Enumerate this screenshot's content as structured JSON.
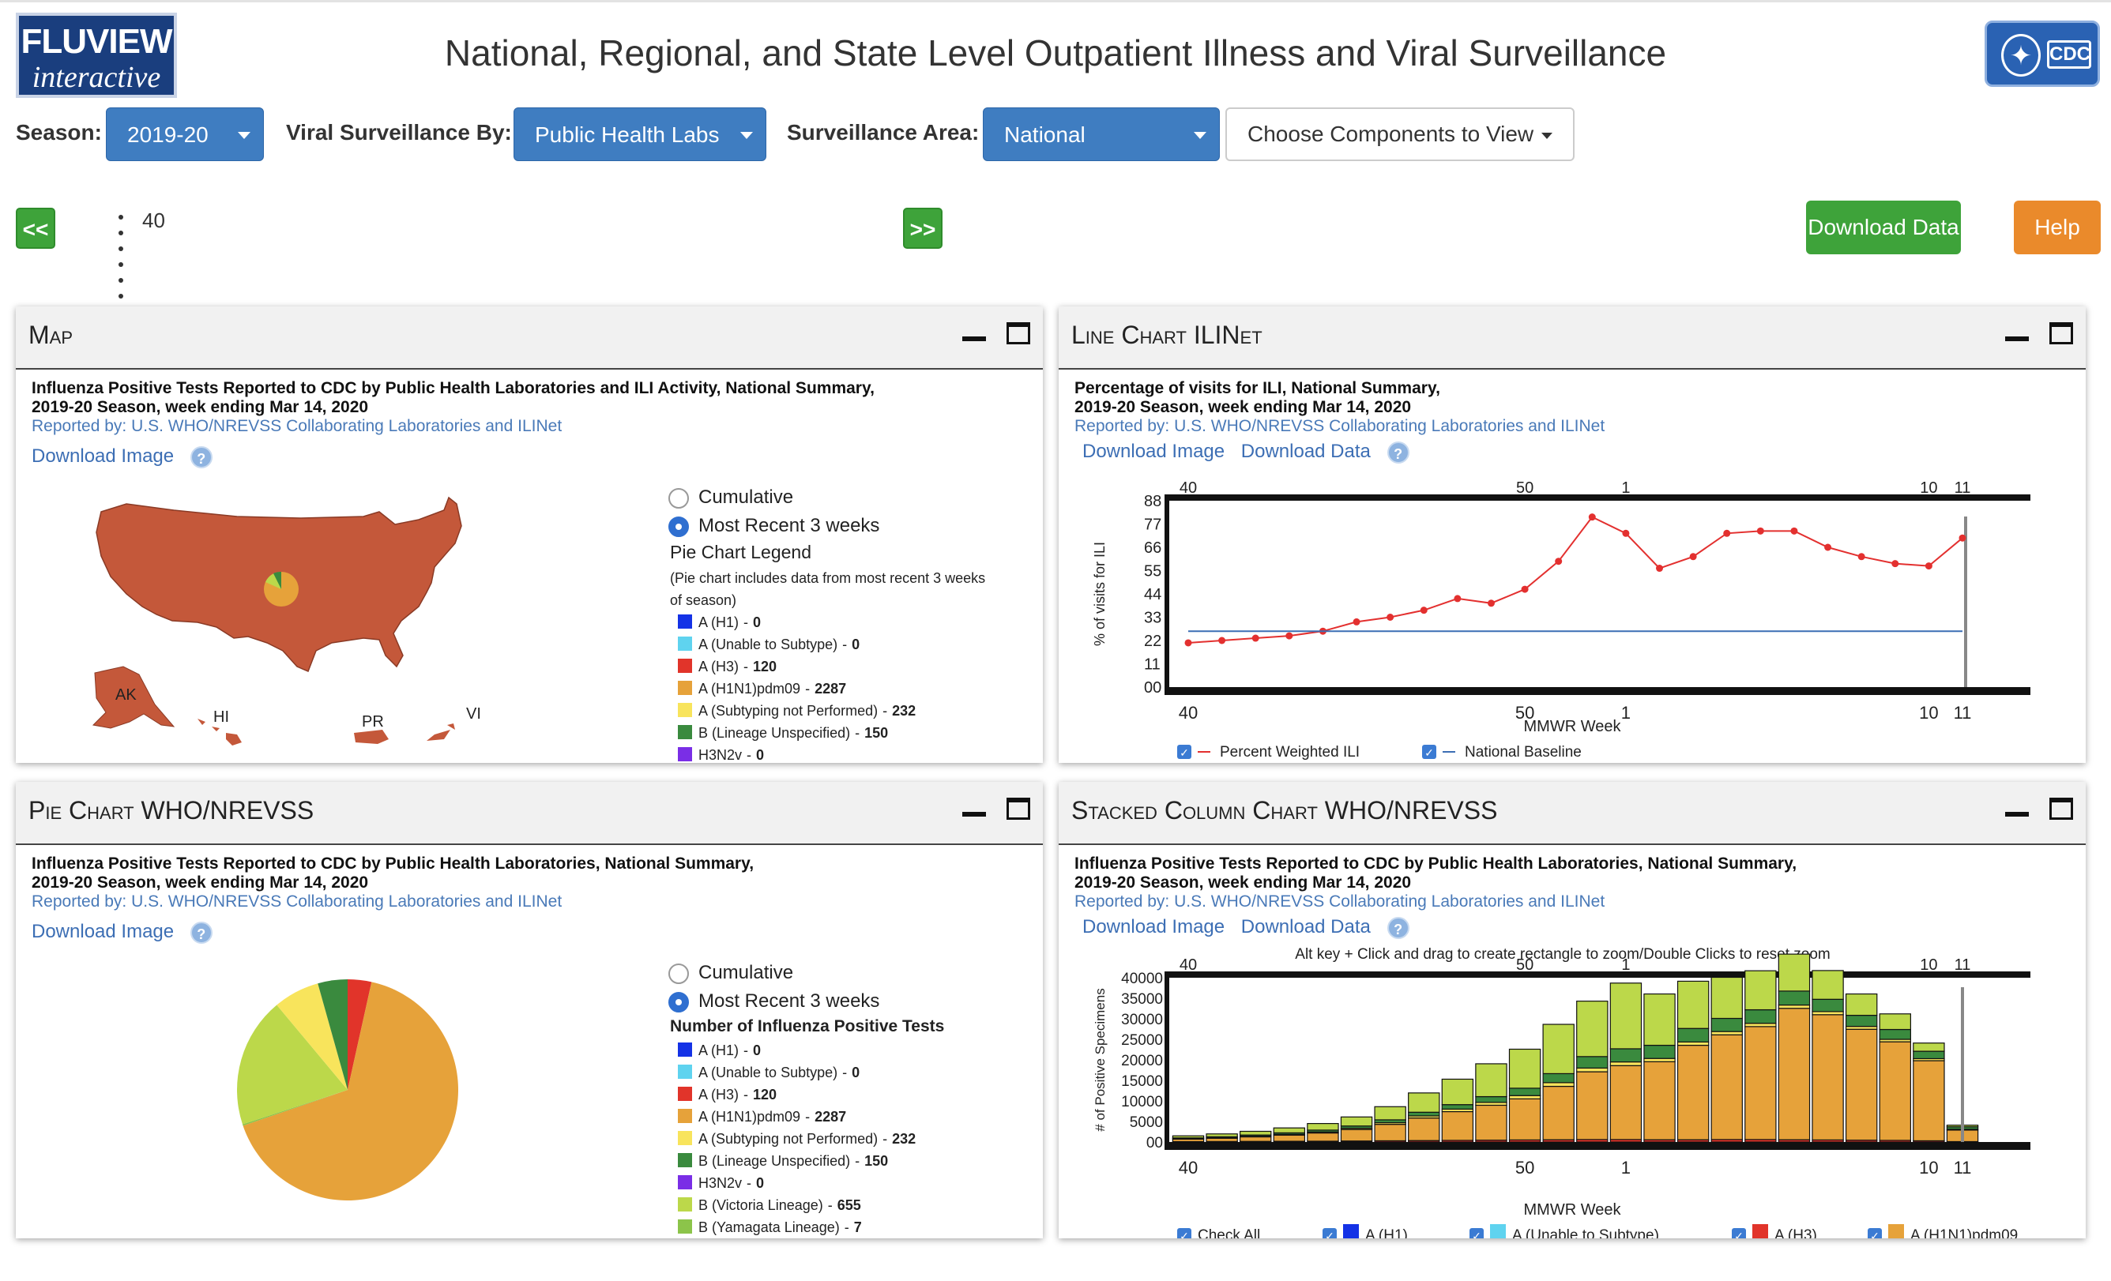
{
  "header": {
    "logo_top": "FLUVIEW",
    "logo_bottom": "interactive",
    "title": "National, Regional, and State Level Outpatient Illness and Viral Surveillance",
    "cdc_logo": "CDC"
  },
  "controls": {
    "season_label": "Season:",
    "season_value": "2019-20",
    "viral_label": "Viral Surveillance By:",
    "viral_value": "Public Health Labs",
    "area_label": "Surveillance Area:",
    "area_value": "National",
    "components_label": "Choose Components to View",
    "prev_label": "<<",
    "next_label": ">>",
    "week_value": "40",
    "download_data": "Download Data",
    "help": "Help"
  },
  "colors": {
    "green_button": "#3ea33a",
    "orange_button": "#ea8a2b",
    "select_blue": "#3f7dc1",
    "map_fill": "#c4583a",
    "link_blue": "#3c6eb4"
  },
  "legend_items": [
    {
      "label": "A (H1)",
      "value": "0",
      "color": "#1432e6"
    },
    {
      "label": "A (Unable to Subtype)",
      "value": "0",
      "color": "#5fd3ef"
    },
    {
      "label": "A (H3)",
      "value": "120",
      "color": "#e1342a"
    },
    {
      "label": "A (H1N1)pdm09",
      "value": "2287",
      "color": "#e6a23a"
    },
    {
      "label": "A (Subtyping not Performed)",
      "value": "232",
      "color": "#f8e45c"
    },
    {
      "label": "B (Lineage Unspecified)",
      "value": "150",
      "color": "#3a8a3e"
    },
    {
      "label": "H3N2v",
      "value": "0",
      "color": "#7a2ee6"
    },
    {
      "label": "B (Victoria Lineage)",
      "value": "655",
      "color": "#bcd84a"
    },
    {
      "label": "B (Yamagata Lineage)",
      "value": "7",
      "color": "#8cc44a"
    }
  ],
  "map_panel": {
    "title": "Map",
    "chart_title_1": "Influenza Positive Tests Reported to CDC by Public Health Laboratories and ILI Activity, National Summary,",
    "chart_title_2": "2019-20 Season, week ending Mar 14, 2020",
    "reported_by": "Reported by: U.S. WHO/NREVSS Collaborating Laboratories and ILINet",
    "download_image": "Download Image",
    "help_icon": "?",
    "radio_cumulative": "Cumulative",
    "radio_recent": "Most Recent 3 weeks",
    "legend_title": "Pie Chart Legend",
    "legend_note": "(Pie chart includes data from most recent 3 weeks of season)",
    "labels": {
      "ak": "AK",
      "hi": "HI",
      "pr": "PR",
      "vi": "VI"
    }
  },
  "line_panel": {
    "title": "Line Chart ILINet",
    "chart_title_1": "Percentage of visits for ILI, National Summary,",
    "chart_title_2": "2019-20 Season, week ending Mar 14, 2020",
    "reported_by": "Reported by: U.S. WHO/NREVSS Collaborating Laboratories and ILINet",
    "download_image": "Download Image",
    "download_data": "Download Data",
    "help_icon": "?",
    "legend_ili": "Percent Weighted ILI",
    "legend_baseline": "National Baseline"
  },
  "pie_panel": {
    "title": "Pie Chart WHO/NREVSS",
    "chart_title_1": "Influenza Positive Tests Reported to CDC by Public Health Laboratories, National Summary,",
    "chart_title_2": "2019-20 Season, week ending Mar 14, 2020",
    "reported_by": "Reported by: U.S. WHO/NREVSS Collaborating Laboratories and ILINet",
    "download_image": "Download Image",
    "help_icon": "?",
    "radio_cumulative": "Cumulative",
    "radio_recent": "Most Recent 3 weeks",
    "legend_title": "Number of Influenza Positive Tests"
  },
  "stack_panel": {
    "title": "Stacked Column Chart WHO/NREVSS",
    "chart_title_1": "Influenza Positive Tests Reported to CDC by Public Health Laboratories, National Summary,",
    "chart_title_2": "2019-20 Season, week ending Mar 14, 2020",
    "reported_by": "Reported by: U.S. WHO/NREVSS Collaborating Laboratories and ILINet",
    "download_image": "Download Image",
    "download_data": "Download Data",
    "help_icon": "?",
    "zoom_hint": "Alt key + Click and drag to create rectangle to zoom/Double Clicks to reset zoom",
    "legend": [
      "Check All",
      "A (H1)",
      "A (Unable to Subtype)",
      "A (H3)",
      "A (H1N1)pdm09"
    ]
  },
  "chart_data": [
    {
      "type": "line",
      "title": "Percentage of visits for ILI, National Summary, 2019-20 Season, week ending Mar 14, 2020",
      "xlabel": "MMWR Week",
      "ylabel": "% of visits for ILI",
      "x_ticks": [
        "40",
        "50",
        "1",
        "10",
        "11"
      ],
      "y_ticks": [
        "00",
        "11",
        "22",
        "33",
        "44",
        "55",
        "66",
        "77",
        "88"
      ],
      "ylim": [
        0,
        8
      ],
      "x": [
        40,
        41,
        42,
        43,
        44,
        45,
        46,
        47,
        48,
        49,
        50,
        51,
        52,
        1,
        2,
        3,
        4,
        5,
        6,
        7,
        8,
        9,
        10,
        11
      ],
      "series": [
        {
          "name": "Percent Weighted ILI",
          "color": "#e3302f",
          "values": [
            1.9,
            2.0,
            2.1,
            2.2,
            2.4,
            2.8,
            3.0,
            3.3,
            3.8,
            3.6,
            4.2,
            5.4,
            7.3,
            6.6,
            5.1,
            5.6,
            6.6,
            6.7,
            6.7,
            6.0,
            5.6,
            5.3,
            5.2,
            6.4
          ]
        },
        {
          "name": "National Baseline",
          "color": "#3c6eb4",
          "values": [
            2.4,
            2.4,
            2.4,
            2.4,
            2.4,
            2.4,
            2.4,
            2.4,
            2.4,
            2.4,
            2.4,
            2.4,
            2.4,
            2.4,
            2.4,
            2.4,
            2.4,
            2.4,
            2.4,
            2.4,
            2.4,
            2.4,
            2.4,
            2.4
          ]
        }
      ]
    },
    {
      "type": "pie",
      "title": "Number of Influenza Positive Tests",
      "categories": [
        "A (H1)",
        "A (Unable to Subtype)",
        "A (H3)",
        "A (H1N1)pdm09",
        "A (Subtyping not Performed)",
        "B (Lineage Unspecified)",
        "H3N2v",
        "B (Victoria Lineage)",
        "B (Yamagata Lineage)"
      ],
      "values": [
        0,
        0,
        120,
        2287,
        232,
        150,
        0,
        655,
        7
      ]
    },
    {
      "type": "bar",
      "title": "Influenza Positive Tests Reported to CDC by Public Health Laboratories, National Summary, 2019-20 Season, week ending Mar 14, 2020",
      "xlabel": "MMWR Week",
      "ylabel": "# of Positive Specimens",
      "x_ticks": [
        "40",
        "50",
        "1",
        "10",
        "11"
      ],
      "ylim": [
        0,
        4000
      ],
      "categories": [
        "40",
        "41",
        "42",
        "43",
        "44",
        "45",
        "46",
        "47",
        "48",
        "49",
        "50",
        "51",
        "52",
        "1",
        "2",
        "3",
        "4",
        "5",
        "6",
        "7",
        "8",
        "9",
        "10",
        "11"
      ],
      "series": [
        {
          "name": "A (H3)",
          "color": "#e1342a",
          "values": [
            10,
            12,
            15,
            18,
            20,
            25,
            30,
            35,
            40,
            45,
            50,
            55,
            60,
            60,
            55,
            55,
            60,
            60,
            55,
            50,
            45,
            40,
            30,
            10
          ]
        },
        {
          "name": "A (H1N1)pdm09",
          "color": "#e6a23a",
          "values": [
            60,
            80,
            110,
            150,
            200,
            280,
            400,
            550,
            700,
            850,
            1000,
            1300,
            1650,
            1800,
            1900,
            2300,
            2550,
            2750,
            3200,
            3050,
            2700,
            2400,
            1950,
            280
          ]
        },
        {
          "name": "A (Subtyping not Performed)",
          "color": "#f8e45c",
          "values": [
            10,
            10,
            15,
            20,
            25,
            30,
            40,
            50,
            60,
            70,
            80,
            90,
            90,
            90,
            80,
            80,
            80,
            80,
            80,
            75,
            70,
            60,
            50,
            20
          ]
        },
        {
          "name": "B (Lineage Unspecified)",
          "color": "#3a8a3e",
          "values": [
            20,
            25,
            30,
            35,
            45,
            55,
            70,
            90,
            110,
            140,
            180,
            220,
            280,
            320,
            320,
            330,
            320,
            330,
            340,
            300,
            270,
            240,
            180,
            60
          ]
        },
        {
          "name": "B (Victoria Lineage)",
          "color": "#bcd84a",
          "values": [
            50,
            70,
            90,
            120,
            160,
            220,
            320,
            470,
            620,
            800,
            950,
            1200,
            1350,
            1600,
            1250,
            1150,
            1000,
            950,
            900,
            700,
            520,
            380,
            200,
            40
          ]
        }
      ]
    }
  ]
}
